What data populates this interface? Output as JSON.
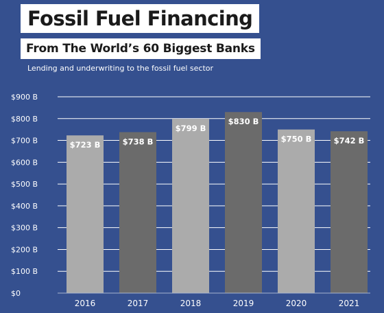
{
  "header": {
    "title": "Fossil Fuel Financing",
    "subtitle": "From The World’s 60 Biggest Banks",
    "caption": "Lending and underwriting to the fossil fuel sector"
  },
  "colors": {
    "background": "#35508f",
    "bar_light": "#ababab",
    "bar_dark": "#6b6b6b",
    "gridline": "#ffffff",
    "text": "#ffffff"
  },
  "chart_data": {
    "type": "bar",
    "categories": [
      "2016",
      "2017",
      "2018",
      "2019",
      "2020",
      "2021"
    ],
    "values": [
      723,
      738,
      799,
      830,
      750,
      742
    ],
    "data_labels": [
      "$723 B",
      "$738 B",
      "$799 B",
      "$830 B",
      "$750 B",
      "$742 B"
    ],
    "y_ticks": [
      0,
      100,
      200,
      300,
      400,
      500,
      600,
      700,
      800,
      900
    ],
    "y_tick_labels": [
      "$0",
      "$100 B",
      "$200 B",
      "$300 B",
      "$400 B",
      "$500 B",
      "$600 B",
      "$700 B",
      "$800 B",
      "$900 B"
    ],
    "ylim": [
      0,
      900
    ],
    "grid": true,
    "bar_colors": [
      "#ababab",
      "#6b6b6b",
      "#ababab",
      "#6b6b6b",
      "#ababab",
      "#6b6b6b"
    ]
  }
}
